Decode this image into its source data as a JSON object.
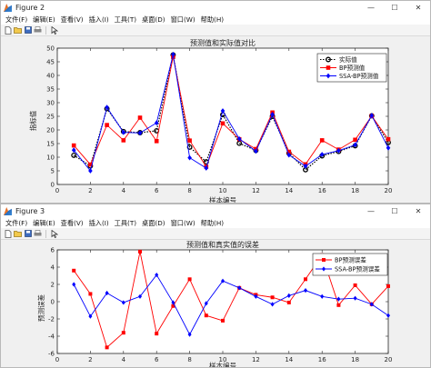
{
  "windows": [
    {
      "title": "Figure 2",
      "menu": [
        "文件(F)",
        "编辑(E)",
        "查看(V)",
        "插入(I)",
        "工具(T)",
        "桌面(D)",
        "窗口(W)",
        "帮助(H)"
      ],
      "window_controls": {
        "minimize": "—",
        "maximize": "☐",
        "close": "✕"
      }
    },
    {
      "title": "Figure 3",
      "menu": [
        "文件(F)",
        "编辑(E)",
        "查看(V)",
        "插入(I)",
        "工具(T)",
        "桌面(D)",
        "窗口(W)",
        "帮助(H)"
      ],
      "window_controls": {
        "minimize": "—",
        "maximize": "☐",
        "close": "✕"
      }
    }
  ],
  "toolbar_icons": [
    "new-file-icon",
    "open-file-icon",
    "save-icon",
    "print-icon",
    "pointer-icon"
  ],
  "chart_data": [
    {
      "type": "line",
      "title": "预测值和实际值对比",
      "xlabel": "样本编号",
      "ylabel": "指标值",
      "xlim": [
        0,
        20
      ],
      "ylim": [
        0,
        50
      ],
      "xticks": [
        0,
        2,
        4,
        6,
        8,
        10,
        12,
        14,
        16,
        18,
        20
      ],
      "yticks": [
        0,
        5,
        10,
        15,
        20,
        25,
        30,
        35,
        40,
        45,
        50
      ],
      "legend_position": "top-right",
      "x": [
        1,
        2,
        3,
        4,
        5,
        6,
        7,
        8,
        9,
        10,
        11,
        12,
        13,
        14,
        15,
        16,
        17,
        18,
        19,
        20
      ],
      "series": [
        {
          "name": "实际值",
          "color": "#000000",
          "marker": "circle",
          "dash": "dotted",
          "values": [
            10.7,
            6.8,
            27.8,
            19.4,
            19.0,
            19.7,
            47.5,
            13.7,
            8.3,
            25.6,
            15.1,
            12.5,
            25.0,
            11.5,
            5.4,
            10.5,
            12.1,
            14.2,
            25.2,
            15.4
          ]
        },
        {
          "name": "BP预测值",
          "color": "#ff0000",
          "marker": "square",
          "dash": "solid",
          "values": [
            14.3,
            7.3,
            21.8,
            16.2,
            24.5,
            15.9,
            46.8,
            16.1,
            6.5,
            22.4,
            16.6,
            13.0,
            26.4,
            12.0,
            7.4,
            16.2,
            12.8,
            16.4,
            25.1,
            16.6
          ]
        },
        {
          "name": "SSA-BP预测值",
          "color": "#0000ff",
          "marker": "diamond",
          "dash": "solid",
          "values": [
            12.6,
            5.0,
            28.3,
            19.1,
            18.9,
            22.6,
            47.7,
            9.8,
            6.0,
            27.0,
            16.7,
            12.2,
            25.7,
            10.8,
            6.7,
            11.0,
            12.4,
            14.5,
            25.3,
            13.4
          ]
        }
      ]
    },
    {
      "type": "line",
      "title": "预测值和真实值的误差",
      "xlabel": "样本编号",
      "ylabel": "预测误差",
      "xlim": [
        0,
        20
      ],
      "ylim": [
        -6,
        6
      ],
      "xticks": [
        0,
        2,
        4,
        6,
        8,
        10,
        12,
        14,
        16,
        18,
        20
      ],
      "yticks": [
        -6,
        -4,
        -2,
        0,
        2,
        4,
        6
      ],
      "legend_position": "top-right",
      "x": [
        1,
        2,
        3,
        4,
        5,
        6,
        7,
        8,
        9,
        10,
        11,
        12,
        13,
        14,
        15,
        16,
        17,
        18,
        19,
        20
      ],
      "series": [
        {
          "name": "BP预测误差",
          "color": "#ff0000",
          "marker": "square",
          "dash": "solid",
          "values": [
            3.6,
            0.9,
            -5.3,
            -3.6,
            5.8,
            -3.7,
            -0.5,
            2.6,
            -1.6,
            -2.2,
            1.6,
            0.8,
            0.5,
            -0.1,
            2.6,
            5.4,
            -0.4,
            1.9,
            -0.3,
            1.8
          ]
        },
        {
          "name": "SSA-BP预测误差",
          "color": "#0000ff",
          "marker": "diamond",
          "dash": "solid",
          "values": [
            2.0,
            -1.7,
            1.0,
            -0.1,
            0.6,
            3.1,
            -0.1,
            -3.8,
            -0.2,
            2.4,
            1.6,
            0.6,
            -0.3,
            0.7,
            1.3,
            0.6,
            0.3,
            0.4,
            -0.3,
            -1.6
          ]
        }
      ]
    }
  ]
}
